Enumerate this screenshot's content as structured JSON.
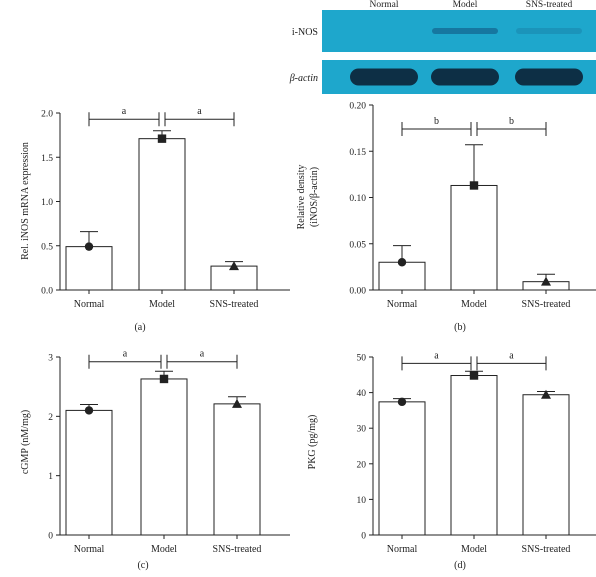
{
  "blot": {
    "lanes": [
      "Normal",
      "Model",
      "SNS-treated"
    ],
    "rows": [
      {
        "label": "i-NOS",
        "intensity": [
          0.0,
          0.75,
          0.05
        ]
      },
      {
        "label": "β-actin",
        "intensity": [
          1.0,
          1.0,
          1.0
        ]
      }
    ]
  },
  "colors": {
    "blot_bg": "#1ea7cc",
    "blot_band": "#0d2f45",
    "blot_faint": "#1677a0",
    "axis": "#222222",
    "bar_fill": "#ffffff"
  },
  "chart_data": [
    {
      "type": "bar",
      "panel": "(a)",
      "title": "",
      "xlabel": "",
      "ylabel": "Rel. iNOS mRNA expression",
      "categories": [
        "Normal",
        "Model",
        "SNS-treated"
      ],
      "values": [
        0.49,
        1.71,
        0.27
      ],
      "errors": [
        0.17,
        0.09,
        0.05
      ],
      "markers": [
        "circle",
        "square",
        "triangle"
      ],
      "ylim": [
        0,
        2.0
      ],
      "yticks": [
        0.0,
        0.5,
        1.0,
        1.5,
        2.0
      ],
      "ytick_labels": [
        "0.0",
        "0.5",
        "1.0",
        "1.5",
        "2.0"
      ],
      "significance": [
        {
          "from": 0,
          "to": 1,
          "label": "a"
        },
        {
          "from": 1,
          "to": 2,
          "label": "a"
        }
      ],
      "sig_y": 1.93
    },
    {
      "type": "bar",
      "panel": "(b)",
      "title": "",
      "xlabel": "",
      "ylabel": "Relative density",
      "ylabel2": "(iNOS/β-actin)",
      "categories": [
        "Normal",
        "Model",
        "SNS-treated"
      ],
      "values": [
        0.03,
        0.113,
        0.009
      ],
      "errors": [
        0.018,
        0.044,
        0.008
      ],
      "markers": [
        "circle",
        "square",
        "triangle"
      ],
      "ylim": [
        0,
        0.2
      ],
      "yticks": [
        0.0,
        0.05,
        0.1,
        0.15,
        0.2
      ],
      "ytick_labels": [
        "0.00",
        "0.05",
        "0.10",
        "0.15",
        "0.20"
      ],
      "significance": [
        {
          "from": 0,
          "to": 1,
          "label": "b"
        },
        {
          "from": 1,
          "to": 2,
          "label": "b"
        }
      ],
      "sig_y": 0.174
    },
    {
      "type": "bar",
      "panel": "(c)",
      "title": "",
      "xlabel": "",
      "ylabel": "cGMP (nM/mg)",
      "categories": [
        "Normal",
        "Model",
        "SNS-treated"
      ],
      "values": [
        2.1,
        2.63,
        2.21
      ],
      "errors": [
        0.1,
        0.13,
        0.12
      ],
      "markers": [
        "circle",
        "square",
        "triangle"
      ],
      "ylim": [
        0,
        3
      ],
      "yticks": [
        0,
        1,
        2,
        3
      ],
      "ytick_labels": [
        "0",
        "1",
        "2",
        "3"
      ],
      "significance": [
        {
          "from": 0,
          "to": 1,
          "label": "a"
        },
        {
          "from": 1,
          "to": 2,
          "label": "a"
        }
      ],
      "sig_y": 2.92
    },
    {
      "type": "bar",
      "panel": "(d)",
      "title": "",
      "xlabel": "",
      "ylabel": "PKG (pg/mg)",
      "categories": [
        "Normal",
        "Model",
        "SNS-treated"
      ],
      "values": [
        37.4,
        44.8,
        39.4
      ],
      "errors": [
        0.9,
        1.2,
        0.9
      ],
      "markers": [
        "circle",
        "square",
        "triangle"
      ],
      "ylim": [
        0,
        50
      ],
      "yticks": [
        0,
        10,
        20,
        30,
        40,
        50
      ],
      "ytick_labels": [
        "0",
        "10",
        "20",
        "30",
        "40",
        "50"
      ],
      "significance": [
        {
          "from": 0,
          "to": 1,
          "label": "a"
        },
        {
          "from": 1,
          "to": 2,
          "label": "a"
        }
      ],
      "sig_y": 48.2
    }
  ]
}
